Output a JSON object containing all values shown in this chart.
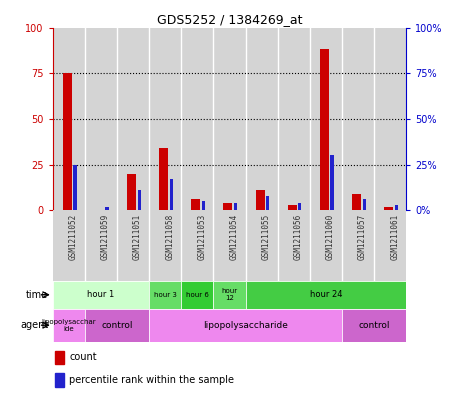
{
  "title": "GDS5252 / 1384269_at",
  "samples": [
    "GSM1211052",
    "GSM1211059",
    "GSM1211051",
    "GSM1211058",
    "GSM1211053",
    "GSM1211054",
    "GSM1211055",
    "GSM1211056",
    "GSM1211060",
    "GSM1211057",
    "GSM1211061"
  ],
  "count_values": [
    75,
    0,
    20,
    34,
    6,
    4,
    11,
    3,
    88,
    9,
    2
  ],
  "percentile_values": [
    25,
    2,
    11,
    17,
    5,
    4,
    8,
    4,
    30,
    6,
    3
  ],
  "ylim": [
    0,
    100
  ],
  "yticks": [
    0,
    25,
    50,
    75,
    100
  ],
  "red_bar_width": 0.28,
  "blue_bar_width": 0.1,
  "count_color": "#cc0000",
  "percentile_color": "#2222cc",
  "left_axis_color": "#cc0000",
  "right_axis_color": "#0000cc",
  "bg_color": "#ffffff",
  "legend_count_label": "count",
  "legend_percentile_label": "percentile rank within the sample",
  "time_segments": [
    {
      "label": "hour 1",
      "start": 0,
      "end": 3,
      "color": "#ccffcc"
    },
    {
      "label": "hour 3",
      "start": 3,
      "end": 4,
      "color": "#66dd66"
    },
    {
      "label": "hour 6",
      "start": 4,
      "end": 5,
      "color": "#33cc33"
    },
    {
      "label": "hour\n12",
      "start": 5,
      "end": 6,
      "color": "#66dd66"
    },
    {
      "label": "hour 24",
      "start": 6,
      "end": 11,
      "color": "#44cc44"
    }
  ],
  "agent_segments": [
    {
      "label": "lipopolysacchar\nide",
      "start": 0,
      "end": 1,
      "color": "#ee88ee"
    },
    {
      "label": "control",
      "start": 1,
      "end": 3,
      "color": "#cc66cc"
    },
    {
      "label": "lipopolysaccharide",
      "start": 3,
      "end": 9,
      "color": "#ee88ee"
    },
    {
      "label": "control",
      "start": 9,
      "end": 11,
      "color": "#cc66cc"
    }
  ],
  "col_bg_color": "#d4d4d4",
  "col_line_color": "#aaaaaa"
}
